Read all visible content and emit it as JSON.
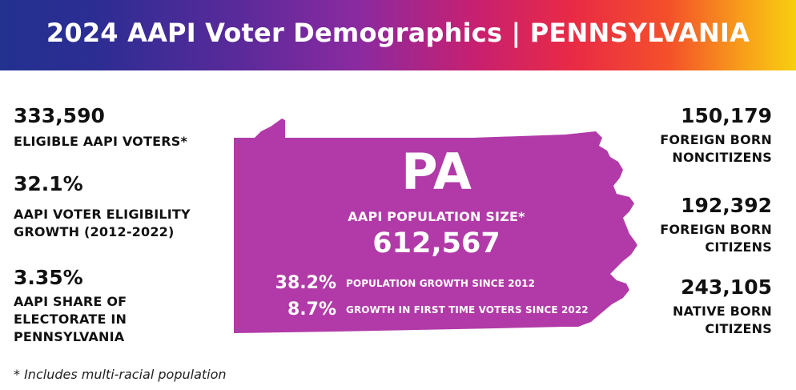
{
  "banner": {
    "title": "2024 AAPI Voter Demographics | PENNSYLVANIA"
  },
  "left_stats": [
    {
      "value": "333,590",
      "label": "ELIGIBLE AAPI VOTERS*"
    },
    {
      "value": "32.1%",
      "label_lines": [
        "AAPI VOTER ELIGIBILITY",
        "GROWTH (2012-2022)"
      ]
    },
    {
      "value": "3.35%",
      "label_lines": [
        "AAPI SHARE OF",
        "ELECTORATE IN",
        "PENNSYLVANIA"
      ]
    }
  ],
  "right_stats": [
    {
      "value": "150,179",
      "label_lines": [
        "FOREIGN BORN",
        "NONCITIZENS"
      ]
    },
    {
      "value": "192,392",
      "label_lines": [
        "FOREIGN BORN",
        "CITIZENS"
      ]
    },
    {
      "value": "243,105",
      "label_lines": [
        "NATIVE BORN",
        "CITIZENS"
      ]
    }
  ],
  "state_map": {
    "abbreviation": "PA",
    "population_label": "AAPI POPULATION SIZE*",
    "population_value": "612,567",
    "growth": [
      {
        "value": "38.2%",
        "label": "POPULATION GROWTH SINCE 2012"
      },
      {
        "value": "8.7%",
        "label": "GROWTH IN FIRST TIME VOTERS SINCE 2022"
      }
    ],
    "fill_color": "#b23aa8"
  },
  "footnote": "* Includes multi-racial population",
  "colors": {
    "gradient_start": "#23318f",
    "gradient_mid": "#c8206f",
    "gradient_end": "#f7cf10",
    "text_dark": "#111111"
  }
}
